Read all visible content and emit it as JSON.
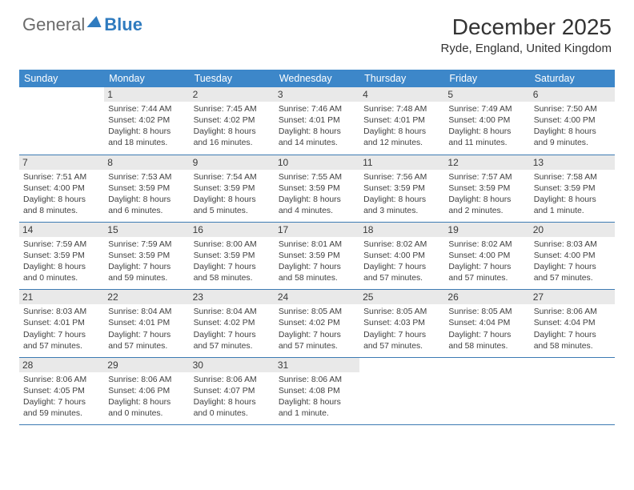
{
  "logo": {
    "general": "General",
    "blue": "Blue"
  },
  "title": "December 2025",
  "location": "Ryde, England, United Kingdom",
  "weekdays": [
    "Sunday",
    "Monday",
    "Tuesday",
    "Wednesday",
    "Thursday",
    "Friday",
    "Saturday"
  ],
  "header_bg": "#3d87c9",
  "border_color": "#3d7bb3",
  "daynum_bg": "#e9e9e9",
  "grid": {
    "rows": 5,
    "cols": 7,
    "first_blank": 1,
    "last_blank": 3
  },
  "days": [
    {
      "n": "1",
      "sr": "7:44 AM",
      "ss": "4:02 PM",
      "dl": "8 hours and 18 minutes."
    },
    {
      "n": "2",
      "sr": "7:45 AM",
      "ss": "4:02 PM",
      "dl": "8 hours and 16 minutes."
    },
    {
      "n": "3",
      "sr": "7:46 AM",
      "ss": "4:01 PM",
      "dl": "8 hours and 14 minutes."
    },
    {
      "n": "4",
      "sr": "7:48 AM",
      "ss": "4:01 PM",
      "dl": "8 hours and 12 minutes."
    },
    {
      "n": "5",
      "sr": "7:49 AM",
      "ss": "4:00 PM",
      "dl": "8 hours and 11 minutes."
    },
    {
      "n": "6",
      "sr": "7:50 AM",
      "ss": "4:00 PM",
      "dl": "8 hours and 9 minutes."
    },
    {
      "n": "7",
      "sr": "7:51 AM",
      "ss": "4:00 PM",
      "dl": "8 hours and 8 minutes."
    },
    {
      "n": "8",
      "sr": "7:53 AM",
      "ss": "3:59 PM",
      "dl": "8 hours and 6 minutes."
    },
    {
      "n": "9",
      "sr": "7:54 AM",
      "ss": "3:59 PM",
      "dl": "8 hours and 5 minutes."
    },
    {
      "n": "10",
      "sr": "7:55 AM",
      "ss": "3:59 PM",
      "dl": "8 hours and 4 minutes."
    },
    {
      "n": "11",
      "sr": "7:56 AM",
      "ss": "3:59 PM",
      "dl": "8 hours and 3 minutes."
    },
    {
      "n": "12",
      "sr": "7:57 AM",
      "ss": "3:59 PM",
      "dl": "8 hours and 2 minutes."
    },
    {
      "n": "13",
      "sr": "7:58 AM",
      "ss": "3:59 PM",
      "dl": "8 hours and 1 minute."
    },
    {
      "n": "14",
      "sr": "7:59 AM",
      "ss": "3:59 PM",
      "dl": "8 hours and 0 minutes."
    },
    {
      "n": "15",
      "sr": "7:59 AM",
      "ss": "3:59 PM",
      "dl": "7 hours and 59 minutes."
    },
    {
      "n": "16",
      "sr": "8:00 AM",
      "ss": "3:59 PM",
      "dl": "7 hours and 58 minutes."
    },
    {
      "n": "17",
      "sr": "8:01 AM",
      "ss": "3:59 PM",
      "dl": "7 hours and 58 minutes."
    },
    {
      "n": "18",
      "sr": "8:02 AM",
      "ss": "4:00 PM",
      "dl": "7 hours and 57 minutes."
    },
    {
      "n": "19",
      "sr": "8:02 AM",
      "ss": "4:00 PM",
      "dl": "7 hours and 57 minutes."
    },
    {
      "n": "20",
      "sr": "8:03 AM",
      "ss": "4:00 PM",
      "dl": "7 hours and 57 minutes."
    },
    {
      "n": "21",
      "sr": "8:03 AM",
      "ss": "4:01 PM",
      "dl": "7 hours and 57 minutes."
    },
    {
      "n": "22",
      "sr": "8:04 AM",
      "ss": "4:01 PM",
      "dl": "7 hours and 57 minutes."
    },
    {
      "n": "23",
      "sr": "8:04 AM",
      "ss": "4:02 PM",
      "dl": "7 hours and 57 minutes."
    },
    {
      "n": "24",
      "sr": "8:05 AM",
      "ss": "4:02 PM",
      "dl": "7 hours and 57 minutes."
    },
    {
      "n": "25",
      "sr": "8:05 AM",
      "ss": "4:03 PM",
      "dl": "7 hours and 57 minutes."
    },
    {
      "n": "26",
      "sr": "8:05 AM",
      "ss": "4:04 PM",
      "dl": "7 hours and 58 minutes."
    },
    {
      "n": "27",
      "sr": "8:06 AM",
      "ss": "4:04 PM",
      "dl": "7 hours and 58 minutes."
    },
    {
      "n": "28",
      "sr": "8:06 AM",
      "ss": "4:05 PM",
      "dl": "7 hours and 59 minutes."
    },
    {
      "n": "29",
      "sr": "8:06 AM",
      "ss": "4:06 PM",
      "dl": "8 hours and 0 minutes."
    },
    {
      "n": "30",
      "sr": "8:06 AM",
      "ss": "4:07 PM",
      "dl": "8 hours and 0 minutes."
    },
    {
      "n": "31",
      "sr": "8:06 AM",
      "ss": "4:08 PM",
      "dl": "8 hours and 1 minute."
    }
  ],
  "labels": {
    "sunrise": "Sunrise:",
    "sunset": "Sunset:",
    "daylight": "Daylight:"
  }
}
